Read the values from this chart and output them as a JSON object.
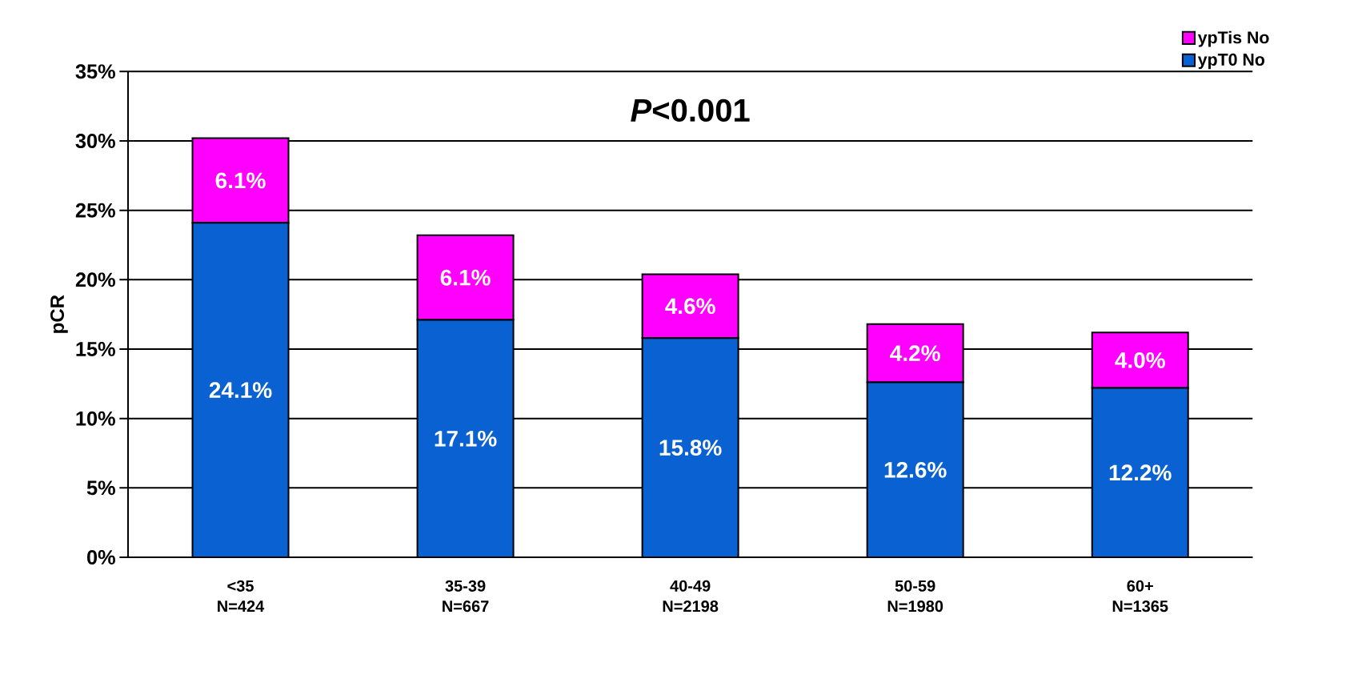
{
  "chart_data": {
    "type": "bar",
    "stacked": true,
    "ylabel": "pCR",
    "categories": [
      "<35 N=424",
      "35-39 N=667",
      "40-49 N=2198",
      "50-59 N=1980",
      "60+ N=1365"
    ],
    "series": [
      {
        "name": "ypT0  No",
        "color": "#0a62d2",
        "values": [
          24.1,
          17.1,
          15.8,
          12.6,
          12.2
        ],
        "value_labels": [
          "24.1%",
          "17.1%",
          "15.8%",
          "12.6%",
          "12.2%"
        ]
      },
      {
        "name": "ypTis No",
        "color": "#ff00ff",
        "values": [
          6.1,
          6.1,
          4.6,
          4.2,
          4.0
        ],
        "value_labels": [
          "6.1%",
          "6.1%",
          "4.6%",
          "4.2%",
          "4.0%"
        ]
      }
    ],
    "ylim": [
      0,
      35
    ],
    "yticks": [
      {
        "value": 0,
        "label": "0%"
      },
      {
        "value": 5,
        "label": "5%"
      },
      {
        "value": 10,
        "label": "10%"
      },
      {
        "value": 15,
        "label": "15%"
      },
      {
        "value": 20,
        "label": "20%"
      },
      {
        "value": 25,
        "label": "25%"
      },
      {
        "value": 30,
        "label": "30%"
      },
      {
        "value": 35,
        "label": "35%"
      }
    ],
    "grid": "y",
    "legend": "top right",
    "annotations": [
      "*P*<0.001"
    ]
  }
}
